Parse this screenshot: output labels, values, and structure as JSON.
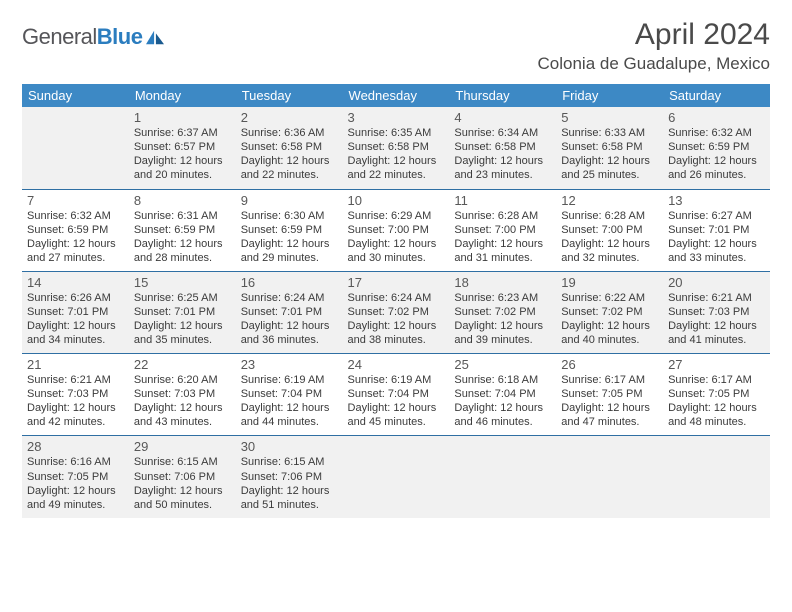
{
  "brand": {
    "part1": "General",
    "part2": "Blue"
  },
  "title": "April 2024",
  "location": "Colonia de Guadalupe, Mexico",
  "colors": {
    "header_bg": "#3d89c5",
    "header_text": "#ffffff",
    "rule": "#2f6fa3",
    "shaded": "#f1f1f1",
    "body_text": "#3b3b3b",
    "brand_gray": "#555559",
    "brand_blue": "#2b7dbf"
  },
  "weekdays": [
    "Sunday",
    "Monday",
    "Tuesday",
    "Wednesday",
    "Thursday",
    "Friday",
    "Saturday"
  ],
  "weeks": [
    {
      "shaded": true,
      "days": [
        null,
        {
          "n": "1",
          "sunrise": "6:37 AM",
          "sunset": "6:57 PM",
          "daylight": "12 hours and 20 minutes."
        },
        {
          "n": "2",
          "sunrise": "6:36 AM",
          "sunset": "6:58 PM",
          "daylight": "12 hours and 22 minutes."
        },
        {
          "n": "3",
          "sunrise": "6:35 AM",
          "sunset": "6:58 PM",
          "daylight": "12 hours and 22 minutes."
        },
        {
          "n": "4",
          "sunrise": "6:34 AM",
          "sunset": "6:58 PM",
          "daylight": "12 hours and 23 minutes."
        },
        {
          "n": "5",
          "sunrise": "6:33 AM",
          "sunset": "6:58 PM",
          "daylight": "12 hours and 25 minutes."
        },
        {
          "n": "6",
          "sunrise": "6:32 AM",
          "sunset": "6:59 PM",
          "daylight": "12 hours and 26 minutes."
        }
      ]
    },
    {
      "shaded": false,
      "days": [
        {
          "n": "7",
          "sunrise": "6:32 AM",
          "sunset": "6:59 PM",
          "daylight": "12 hours and 27 minutes."
        },
        {
          "n": "8",
          "sunrise": "6:31 AM",
          "sunset": "6:59 PM",
          "daylight": "12 hours and 28 minutes."
        },
        {
          "n": "9",
          "sunrise": "6:30 AM",
          "sunset": "6:59 PM",
          "daylight": "12 hours and 29 minutes."
        },
        {
          "n": "10",
          "sunrise": "6:29 AM",
          "sunset": "7:00 PM",
          "daylight": "12 hours and 30 minutes."
        },
        {
          "n": "11",
          "sunrise": "6:28 AM",
          "sunset": "7:00 PM",
          "daylight": "12 hours and 31 minutes."
        },
        {
          "n": "12",
          "sunrise": "6:28 AM",
          "sunset": "7:00 PM",
          "daylight": "12 hours and 32 minutes."
        },
        {
          "n": "13",
          "sunrise": "6:27 AM",
          "sunset": "7:01 PM",
          "daylight": "12 hours and 33 minutes."
        }
      ]
    },
    {
      "shaded": true,
      "days": [
        {
          "n": "14",
          "sunrise": "6:26 AM",
          "sunset": "7:01 PM",
          "daylight": "12 hours and 34 minutes."
        },
        {
          "n": "15",
          "sunrise": "6:25 AM",
          "sunset": "7:01 PM",
          "daylight": "12 hours and 35 minutes."
        },
        {
          "n": "16",
          "sunrise": "6:24 AM",
          "sunset": "7:01 PM",
          "daylight": "12 hours and 36 minutes."
        },
        {
          "n": "17",
          "sunrise": "6:24 AM",
          "sunset": "7:02 PM",
          "daylight": "12 hours and 38 minutes."
        },
        {
          "n": "18",
          "sunrise": "6:23 AM",
          "sunset": "7:02 PM",
          "daylight": "12 hours and 39 minutes."
        },
        {
          "n": "19",
          "sunrise": "6:22 AM",
          "sunset": "7:02 PM",
          "daylight": "12 hours and 40 minutes."
        },
        {
          "n": "20",
          "sunrise": "6:21 AM",
          "sunset": "7:03 PM",
          "daylight": "12 hours and 41 minutes."
        }
      ]
    },
    {
      "shaded": false,
      "days": [
        {
          "n": "21",
          "sunrise": "6:21 AM",
          "sunset": "7:03 PM",
          "daylight": "12 hours and 42 minutes."
        },
        {
          "n": "22",
          "sunrise": "6:20 AM",
          "sunset": "7:03 PM",
          "daylight": "12 hours and 43 minutes."
        },
        {
          "n": "23",
          "sunrise": "6:19 AM",
          "sunset": "7:04 PM",
          "daylight": "12 hours and 44 minutes."
        },
        {
          "n": "24",
          "sunrise": "6:19 AM",
          "sunset": "7:04 PM",
          "daylight": "12 hours and 45 minutes."
        },
        {
          "n": "25",
          "sunrise": "6:18 AM",
          "sunset": "7:04 PM",
          "daylight": "12 hours and 46 minutes."
        },
        {
          "n": "26",
          "sunrise": "6:17 AM",
          "sunset": "7:05 PM",
          "daylight": "12 hours and 47 minutes."
        },
        {
          "n": "27",
          "sunrise": "6:17 AM",
          "sunset": "7:05 PM",
          "daylight": "12 hours and 48 minutes."
        }
      ]
    },
    {
      "shaded": true,
      "days": [
        {
          "n": "28",
          "sunrise": "6:16 AM",
          "sunset": "7:05 PM",
          "daylight": "12 hours and 49 minutes."
        },
        {
          "n": "29",
          "sunrise": "6:15 AM",
          "sunset": "7:06 PM",
          "daylight": "12 hours and 50 minutes."
        },
        {
          "n": "30",
          "sunrise": "6:15 AM",
          "sunset": "7:06 PM",
          "daylight": "12 hours and 51 minutes."
        },
        null,
        null,
        null,
        null
      ]
    }
  ]
}
